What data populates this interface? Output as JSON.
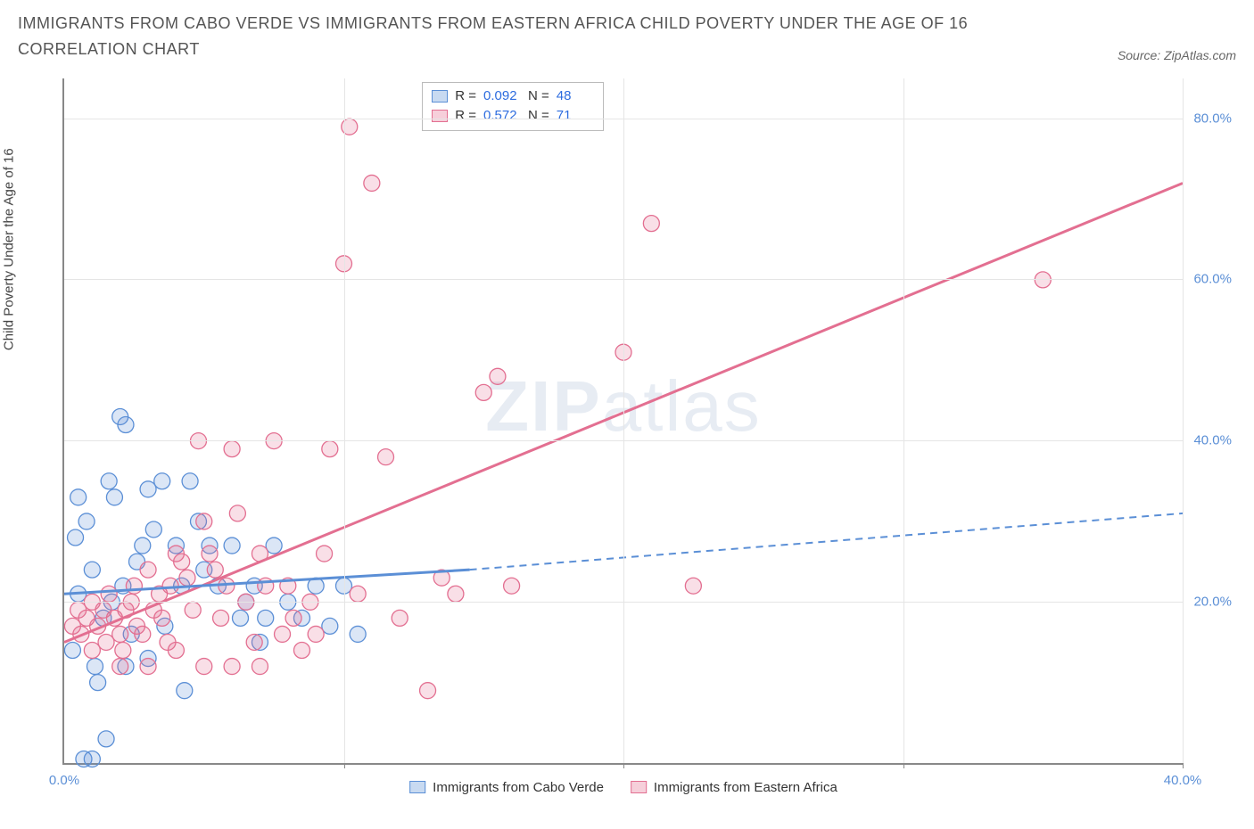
{
  "title": "IMMIGRANTS FROM CABO VERDE VS IMMIGRANTS FROM EASTERN AFRICA CHILD POVERTY UNDER THE AGE OF 16 CORRELATION CHART",
  "source_label": "Source: ZipAtlas.com",
  "y_axis_label": "Child Poverty Under the Age of 16",
  "watermark_a": "ZIP",
  "watermark_b": "atlas",
  "chart": {
    "type": "scatter",
    "xlim": [
      0,
      40
    ],
    "ylim": [
      0,
      85
    ],
    "x_ticks": [
      0,
      10,
      20,
      30,
      40
    ],
    "x_tick_labels": [
      "0.0%",
      "",
      "",
      "",
      "40.0%"
    ],
    "y_ticks": [
      20,
      40,
      60,
      80
    ],
    "y_tick_labels": [
      "20.0%",
      "40.0%",
      "60.0%",
      "80.0%"
    ],
    "background_color": "#ffffff",
    "grid_color": "#e5e5e5",
    "tick_label_color": "#5b8fd6",
    "marker_radius": 9,
    "marker_fill_opacity": 0.22,
    "marker_stroke_width": 1.3,
    "series": [
      {
        "name": "Immigrants from Cabo Verde",
        "color": "#5b8fd6",
        "R": "0.092",
        "N": "48",
        "trend": {
          "x1": 0,
          "y1": 21,
          "x2": 14.5,
          "y2": 24,
          "dash_x2": 40,
          "dash_y2": 31
        },
        "points": [
          [
            0.3,
            14
          ],
          [
            0.4,
            28
          ],
          [
            0.5,
            21
          ],
          [
            0.7,
            0.5
          ],
          [
            1.0,
            0.5
          ],
          [
            0.5,
            33
          ],
          [
            0.8,
            30
          ],
          [
            1.0,
            24
          ],
          [
            1.1,
            12
          ],
          [
            1.2,
            10
          ],
          [
            1.4,
            18
          ],
          [
            1.5,
            3
          ],
          [
            1.6,
            35
          ],
          [
            1.7,
            20
          ],
          [
            1.8,
            33
          ],
          [
            2.0,
            43
          ],
          [
            2.2,
            42
          ],
          [
            2.1,
            22
          ],
          [
            2.2,
            12
          ],
          [
            2.4,
            16
          ],
          [
            2.6,
            25
          ],
          [
            2.8,
            27
          ],
          [
            3.0,
            13
          ],
          [
            3.0,
            34
          ],
          [
            3.2,
            29
          ],
          [
            3.5,
            35
          ],
          [
            3.6,
            17
          ],
          [
            4.0,
            27
          ],
          [
            4.2,
            22
          ],
          [
            4.3,
            9
          ],
          [
            4.5,
            35
          ],
          [
            4.8,
            30
          ],
          [
            5.0,
            24
          ],
          [
            5.2,
            27
          ],
          [
            5.5,
            22
          ],
          [
            6.0,
            27
          ],
          [
            6.3,
            18
          ],
          [
            6.5,
            20
          ],
          [
            6.8,
            22
          ],
          [
            7.0,
            15
          ],
          [
            7.2,
            18
          ],
          [
            7.5,
            27
          ],
          [
            8.0,
            20
          ],
          [
            8.5,
            18
          ],
          [
            9.0,
            22
          ],
          [
            9.5,
            17
          ],
          [
            10.0,
            22
          ],
          [
            10.5,
            16
          ]
        ]
      },
      {
        "name": "Immigrants from Eastern Africa",
        "color": "#e36f91",
        "R": "0.572",
        "N": "71",
        "trend": {
          "x1": 0,
          "y1": 15,
          "x2": 40,
          "y2": 72
        },
        "points": [
          [
            0.3,
            17
          ],
          [
            0.5,
            19
          ],
          [
            0.6,
            16
          ],
          [
            0.8,
            18
          ],
          [
            1.0,
            20
          ],
          [
            1.2,
            17
          ],
          [
            1.4,
            19
          ],
          [
            1.5,
            15
          ],
          [
            1.6,
            21
          ],
          [
            1.8,
            18
          ],
          [
            2.0,
            16
          ],
          [
            2.1,
            14
          ],
          [
            2.2,
            19
          ],
          [
            2.4,
            20
          ],
          [
            2.5,
            22
          ],
          [
            2.6,
            17
          ],
          [
            2.8,
            16
          ],
          [
            3.0,
            24
          ],
          [
            3.2,
            19
          ],
          [
            3.4,
            21
          ],
          [
            3.5,
            18
          ],
          [
            3.7,
            15
          ],
          [
            3.8,
            22
          ],
          [
            4.0,
            26
          ],
          [
            4.2,
            25
          ],
          [
            4.4,
            23
          ],
          [
            4.6,
            19
          ],
          [
            4.8,
            40
          ],
          [
            5.0,
            30
          ],
          [
            5.2,
            26
          ],
          [
            5.4,
            24
          ],
          [
            5.6,
            18
          ],
          [
            5.8,
            22
          ],
          [
            6.0,
            39
          ],
          [
            6.2,
            31
          ],
          [
            6.5,
            20
          ],
          [
            6.8,
            15
          ],
          [
            7.0,
            26
          ],
          [
            7.2,
            22
          ],
          [
            7.5,
            40
          ],
          [
            7.8,
            16
          ],
          [
            8.0,
            22
          ],
          [
            8.2,
            18
          ],
          [
            8.5,
            14
          ],
          [
            8.8,
            20
          ],
          [
            9.0,
            16
          ],
          [
            9.3,
            26
          ],
          [
            9.5,
            39
          ],
          [
            10.0,
            62
          ],
          [
            10.2,
            79
          ],
          [
            10.5,
            21
          ],
          [
            11.0,
            72
          ],
          [
            11.5,
            38
          ],
          [
            12.0,
            18
          ],
          [
            13.0,
            9
          ],
          [
            13.5,
            23
          ],
          [
            14.0,
            21
          ],
          [
            15.0,
            46
          ],
          [
            15.5,
            48
          ],
          [
            16.0,
            22
          ],
          [
            20.0,
            51
          ],
          [
            21.0,
            67
          ],
          [
            22.5,
            22
          ],
          [
            35.0,
            60
          ],
          [
            5.0,
            12
          ],
          [
            6.0,
            12
          ],
          [
            7.0,
            12
          ],
          [
            3.0,
            12
          ],
          [
            4.0,
            14
          ],
          [
            2.0,
            12
          ],
          [
            1.0,
            14
          ]
        ]
      }
    ]
  },
  "legend": {
    "items": [
      "Immigrants from Cabo Verde",
      "Immigrants from Eastern Africa"
    ]
  }
}
